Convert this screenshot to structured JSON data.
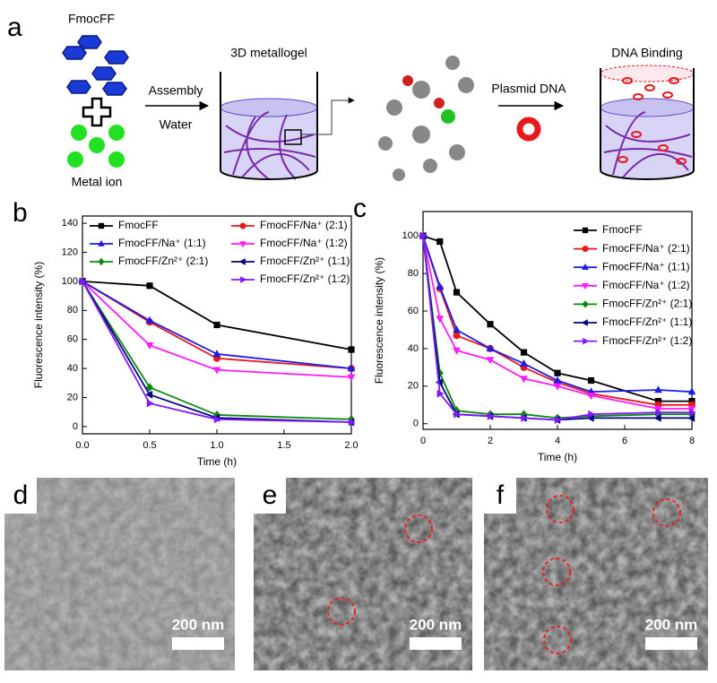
{
  "panel_a": {
    "label": "a",
    "monomer": "FmocFF",
    "ion": "Metal ion",
    "step1_top": "Assembly",
    "step1_bottom": "Water",
    "gel": "3D metallogel",
    "step2": "Plasmid DNA",
    "result": "DNA Binding"
  },
  "chart_data": [
    {
      "type": "line",
      "panel_label": "b",
      "x_label": "Time (h)",
      "y_label": "Fluorescence intensity (%)",
      "x": [
        0,
        0.5,
        1,
        2
      ],
      "xlim": [
        0,
        2
      ],
      "xticks": [
        {
          "value": 0,
          "label": "0.0"
        },
        0.5,
        {
          "value": 1,
          "label": "1.0"
        },
        1.5,
        {
          "value": 2,
          "label": "2.0"
        }
      ],
      "ylim": [
        -5,
        145
      ],
      "yticks": [
        0,
        20,
        40,
        60,
        80,
        100,
        120,
        140
      ],
      "series": [
        {
          "name": "FmocFF",
          "color": "#000000",
          "marker": "square",
          "values": [
            100,
            97,
            70,
            53
          ]
        },
        {
          "name": "FmocFF/Na⁺ (2:1)",
          "color": "#e8191c",
          "marker": "circle",
          "values": [
            100,
            72,
            47,
            40
          ]
        },
        {
          "name": "FmocFF/Na⁺ (1:1)",
          "color": "#1c1ce8",
          "marker": "triangle-up",
          "values": [
            100,
            73,
            50,
            40
          ]
        },
        {
          "name": "FmocFF/Na⁺ (1:2)",
          "color": "#ff1aff",
          "marker": "triangle-down",
          "values": [
            100,
            56,
            39,
            34
          ]
        },
        {
          "name": "FmocFF/Zn²⁺ (2:1)",
          "color": "#0a8a0a",
          "marker": "diamond",
          "values": [
            100,
            27,
            8,
            5
          ]
        },
        {
          "name": "FmocFF/Zn²⁺ (1:1)",
          "color": "#00007f",
          "marker": "triangle-left",
          "values": [
            100,
            22,
            6,
            3
          ]
        },
        {
          "name": "FmocFF/Zn²⁺ (1:2)",
          "color": "#7f1aff",
          "marker": "triangle-right",
          "values": [
            100,
            16,
            5,
            3
          ]
        }
      ]
    },
    {
      "type": "line",
      "panel_label": "c",
      "x_label": "Time (h)",
      "y_label": "Fluorescence intensity (%)",
      "x": [
        0,
        0.5,
        1,
        2,
        3,
        4,
        5,
        7,
        8
      ],
      "xlim": [
        0,
        8
      ],
      "xticks": [
        0,
        2,
        4,
        6,
        8
      ],
      "ylim": [
        -3,
        113
      ],
      "yticks": [
        0,
        20,
        40,
        60,
        80,
        100
      ],
      "series": [
        {
          "name": "FmocFF",
          "color": "#000000",
          "marker": "square",
          "values": [
            100,
            97,
            70,
            53,
            38,
            27,
            23,
            12,
            12
          ]
        },
        {
          "name": "FmocFF/Na⁺ (2:1)",
          "color": "#e8191c",
          "marker": "circle",
          "values": [
            100,
            72,
            47,
            40,
            30,
            22,
            16,
            10,
            10
          ]
        },
        {
          "name": "FmocFF/Na⁺ (1:1)",
          "color": "#1c1ce8",
          "marker": "triangle-up",
          "values": [
            100,
            73,
            50,
            40,
            32,
            23,
            17,
            18,
            17
          ]
        },
        {
          "name": "FmocFF/Na⁺ (1:2)",
          "color": "#ff1aff",
          "marker": "triangle-down",
          "values": [
            100,
            56,
            39,
            34,
            24,
            20,
            15,
            8,
            8
          ]
        },
        {
          "name": "FmocFF/Zn²⁺ (2:1)",
          "color": "#0a8a0a",
          "marker": "diamond",
          "values": [
            100,
            27,
            7,
            5,
            5,
            3,
            4,
            5,
            5
          ]
        },
        {
          "name": "FmocFF/Zn²⁺ (1:1)",
          "color": "#00007f",
          "marker": "triangle-left",
          "values": [
            100,
            22,
            5,
            4,
            3,
            2,
            3,
            3,
            3
          ]
        },
        {
          "name": "FmocFF/Zn²⁺ (1:2)",
          "color": "#7f1aff",
          "marker": "triangle-right",
          "values": [
            100,
            16,
            5,
            4,
            3,
            2,
            5,
            6,
            6
          ]
        }
      ]
    }
  ],
  "micrographs": [
    {
      "label": "d",
      "scale_bar": "200 nm"
    },
    {
      "label": "e",
      "scale_bar": "200 nm"
    },
    {
      "label": "f",
      "scale_bar": "200 nm"
    }
  ]
}
